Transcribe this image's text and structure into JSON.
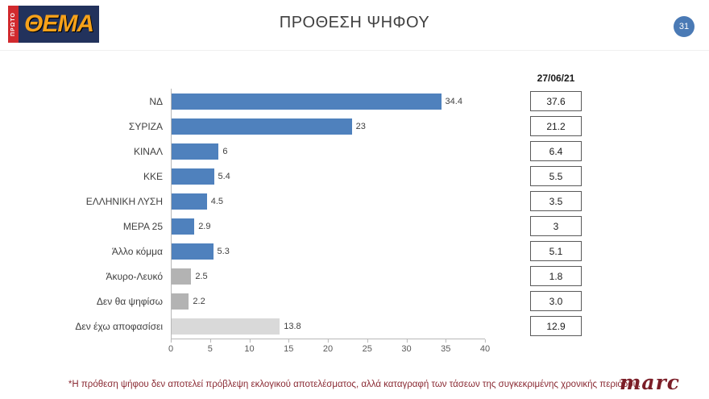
{
  "header": {
    "title": "ΠΡΟΘΕΣΗ ΨΗΦΟΥ",
    "page_number": "31",
    "logo_vertical": "ΠΡΩΤΟ",
    "logo_main": "ΘΕΜΑ"
  },
  "chart_data": {
    "type": "bar",
    "orientation": "horizontal",
    "title": "ΠΡΟΘΕΣΗ ΨΗΦΟΥ",
    "categories": [
      "ΝΔ",
      "ΣΥΡΙΖΑ",
      "ΚΙΝΑΛ",
      "ΚΚΕ",
      "ΕΛΛΗΝΙΚΗ ΛΥΣΗ",
      "ΜΕΡΑ 25",
      "Άλλο κόμμα",
      "Άκυρο-Λευκό",
      "Δεν θα ψηφίσω",
      "Δεν έχω αποφασίσει"
    ],
    "values": [
      34.4,
      23,
      6,
      5.4,
      4.5,
      2.9,
      5.3,
      2.5,
      2.2,
      13.8
    ],
    "value_labels": [
      "34.4",
      "23",
      "6",
      "5.4",
      "4.5",
      "2.9",
      "5.3",
      "2.5",
      "2.2",
      "13.8"
    ],
    "bar_colors": [
      "#4f81bd",
      "#4f81bd",
      "#4f81bd",
      "#4f81bd",
      "#4f81bd",
      "#4f81bd",
      "#4f81bd",
      "#b3b3b3",
      "#b3b3b3",
      "#d9d9d9"
    ],
    "xlim": [
      0,
      40
    ],
    "xticks": [
      "0",
      "5",
      "10",
      "15",
      "20",
      "25",
      "30",
      "35",
      "40"
    ],
    "grid": false,
    "comparison_column": {
      "header": "27/06/21",
      "values": [
        "37.6",
        "21.2",
        "6.4",
        "5.5",
        "3.5",
        "3",
        "5.1",
        "1.8",
        "3.0",
        "12.9"
      ]
    }
  },
  "footer": {
    "note": "*Η πρόθεση ψήφου δεν αποτελεί πρόβλεψη εκλογικού αποτελέσματος, αλλά καταγραφή των τάσεων της συγκεκριμένης χρονικής περιόδου.",
    "brand": "marc"
  },
  "colors": {
    "bar_blue": "#4f81bd",
    "bar_gray": "#b3b3b3",
    "bar_light_gray": "#d9d9d9",
    "note_red": "#8a2a33",
    "page_circle_blue": "#4a7ab5",
    "logo_orange": "#f6a11a",
    "logo_navy": "#22325c"
  }
}
